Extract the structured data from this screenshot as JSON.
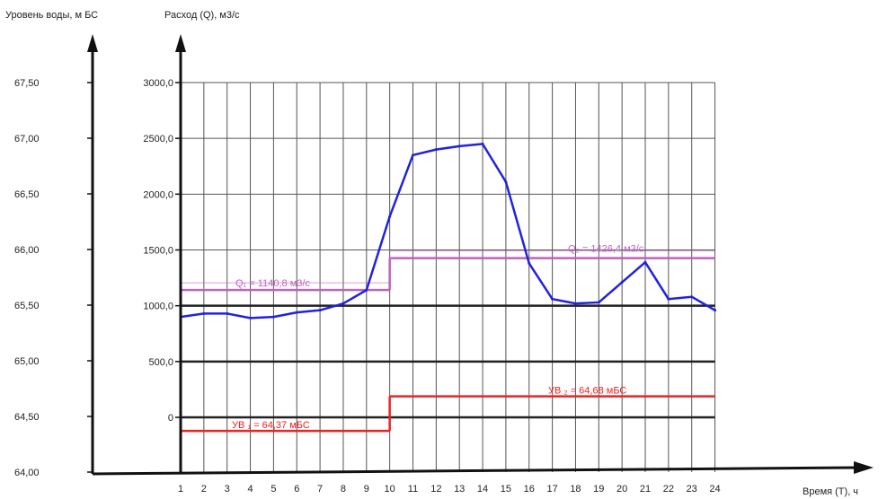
{
  "chart_data": {
    "type": "line",
    "left_axis_label": "Уровень воды, м БС",
    "right_axis_label": "Расход (Q), м3/с",
    "xlabel": "Время (Т), ч",
    "x_categories": [
      "1",
      "2",
      "3",
      "4",
      "5",
      "6",
      "7",
      "8",
      "9",
      "10",
      "11",
      "12",
      "13",
      "14",
      "15",
      "16",
      "17",
      "18",
      "19",
      "20",
      "21",
      "22",
      "23",
      "24"
    ],
    "level_ticks": [
      "64,00",
      "64,50",
      "65,00",
      "65,50",
      "66,00",
      "66,50",
      "67,00",
      "67,50"
    ],
    "level_values": [
      64.0,
      64.5,
      65.0,
      65.5,
      66.0,
      66.5,
      67.0,
      67.5
    ],
    "discharge_ticks": [
      "0",
      "500,0",
      "1000,0",
      "1500,0",
      "2000,0",
      "2500,0",
      "3000,0"
    ],
    "discharge_values": [
      0,
      500,
      1000,
      1500,
      2000,
      2500,
      3000
    ],
    "level_range": [
      64.0,
      67.5
    ],
    "series": [
      {
        "axis": "discharge",
        "color": "#2222dd",
        "x": [
          1,
          2,
          3,
          4,
          5,
          6,
          7,
          8,
          9,
          10,
          11,
          12,
          13,
          14,
          15,
          16,
          17,
          18,
          19,
          20,
          21,
          22,
          23,
          24
        ],
        "values": [
          900,
          930,
          930,
          890,
          900,
          940,
          960,
          1020,
          1140,
          1800,
          2350,
          2400,
          2430,
          2450,
          2110,
          1380,
          1060,
          1020,
          1030,
          1210,
          1390,
          1060,
          1080,
          960
        ]
      }
    ],
    "reference_lines": [
      {
        "label": "Q₁ = 1140,8 м3/с",
        "axis": "discharge",
        "value": 1140.8,
        "x_from": 1,
        "x_to": 10,
        "color": "#c060c0"
      },
      {
        "label": "Q₂ = 1426,4 м3/с",
        "axis": "discharge",
        "value": 1426.4,
        "x_from": 10,
        "x_to": 24,
        "color": "#c060c0"
      },
      {
        "label": "УВ ₁ = 64,37 мБС",
        "axis": "level",
        "value": 64.37,
        "x_from": 1,
        "x_to": 10,
        "color": "#ee2222"
      },
      {
        "label": "УВ ₂ = 64,68 мБС",
        "axis": "level",
        "value": 64.68,
        "x_from": 10,
        "x_to": 24,
        "color": "#ee2222"
      }
    ],
    "grid": true,
    "legend": "none"
  }
}
